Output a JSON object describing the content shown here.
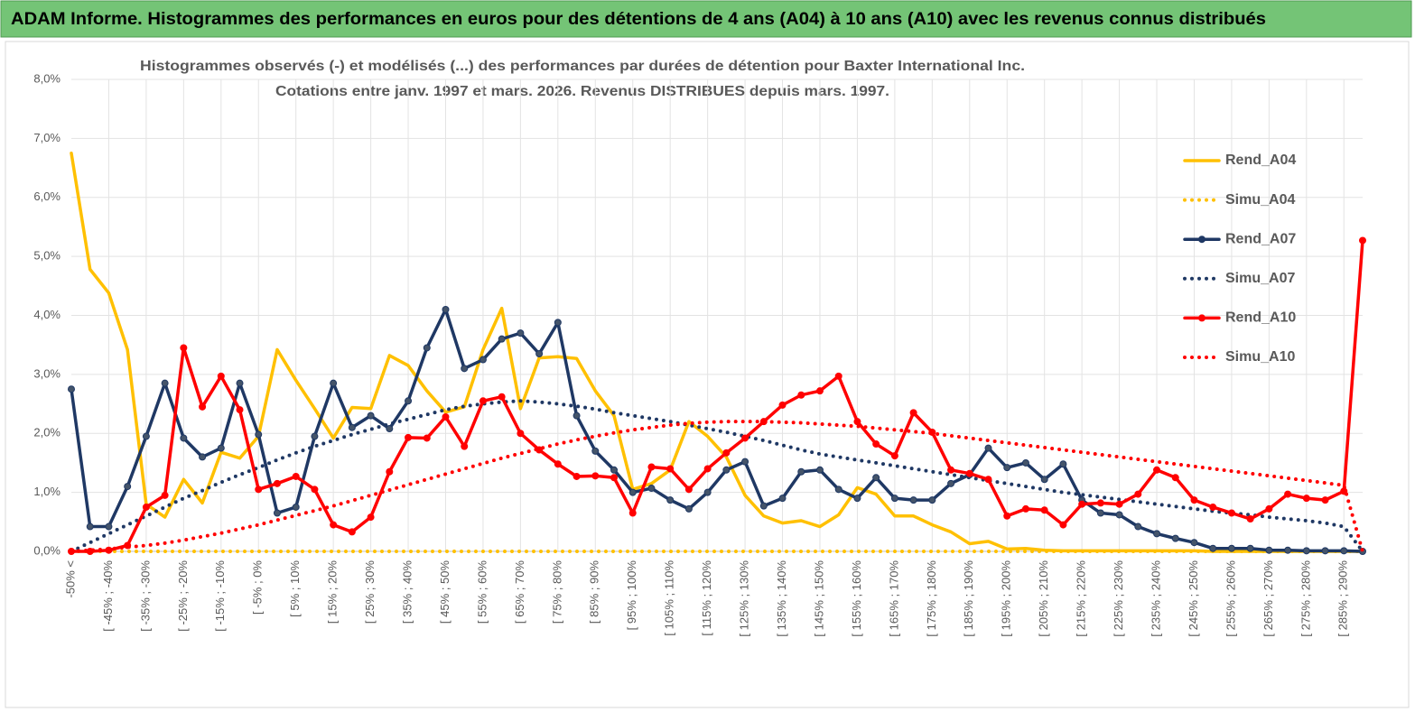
{
  "header": {
    "title": "ADAM Informe. Histogrammes des performances en euros pour des détentions de 4 ans (A04) à 10 ans (A10) avec les revenus connus distribués"
  },
  "chart_data": {
    "type": "line",
    "title": "Histogrammes observés (-) et modélisés (...) des performances par durées de détention pour Baxter International Inc.",
    "subtitle": "Cotations entre janv. 1997 et mars. 2026. Revenus DISTRIBUES depuis mars. 1997.",
    "categories": [
      "-50% <",
      null,
      "[ -45% ; -40%",
      null,
      "[ -35% ; -30%",
      null,
      "[ -25% ; -20%",
      null,
      "[ -15% ; -10%",
      null,
      "[ -5% ; 0%",
      null,
      "[ 5% ; 10%",
      null,
      "[ 15% ; 20%",
      null,
      "[ 25% ; 30%",
      null,
      "[ 35% ; 40%",
      null,
      "[ 45% ; 50%",
      null,
      "[ 55% ; 60%",
      null,
      "[ 65% ; 70%",
      null,
      "[ 75% ; 80%",
      null,
      "[ 85% ; 90%",
      null,
      "[ 95% ; 100%",
      null,
      "[ 105% ; 110%",
      null,
      "[ 115% ; 120%",
      null,
      "[ 125% ; 130%",
      null,
      "[ 135% ; 140%",
      null,
      "[ 145% ; 150%",
      null,
      "[ 155% ; 160%",
      null,
      "[ 165% ; 170%",
      null,
      "[ 175% ; 180%",
      null,
      "[ 185% ; 190%",
      null,
      "[ 195% ; 200%",
      null,
      "[ 205% ; 210%",
      null,
      "[ 215% ; 220%",
      null,
      "[ 225% ; 230%",
      null,
      "[ 235% ; 240%",
      null,
      "[ 245% ; 250%",
      null,
      "[ 255% ; 260%",
      null,
      "[ 265% ; 270%",
      null,
      "[ 275% ; 280%",
      null,
      "[ 285% ; 290%",
      null
    ],
    "ylim": [
      0,
      8
    ],
    "yticks": [
      {
        "value": 0,
        "label": "0,0%"
      },
      {
        "value": 1,
        "label": "1,0%"
      },
      {
        "value": 2,
        "label": "2,0%"
      },
      {
        "value": 3,
        "label": "3,0%"
      },
      {
        "value": 4,
        "label": "4,0%"
      },
      {
        "value": 5,
        "label": "5,0%"
      },
      {
        "value": 6,
        "label": "6,0%"
      },
      {
        "value": 7,
        "label": "7,0%"
      },
      {
        "value": 8,
        "label": "8,0%"
      }
    ],
    "grid": true,
    "legend": "right",
    "series": [
      {
        "name": "Rend_A04",
        "color": "#ffc000",
        "style": "solid",
        "marker": false,
        "values": [
          6.75,
          4.78,
          4.38,
          3.42,
          0.8,
          0.58,
          1.22,
          0.82,
          1.68,
          1.58,
          1.95,
          3.42,
          2.9,
          2.42,
          1.92,
          2.44,
          2.42,
          3.32,
          3.15,
          2.72,
          2.36,
          2.45,
          3.42,
          4.12,
          2.42,
          3.28,
          3.3,
          3.27,
          2.72,
          2.3,
          1.05,
          1.15,
          1.38,
          2.2,
          1.95,
          1.6,
          0.95,
          0.6,
          0.48,
          0.52,
          0.42,
          0.62,
          1.08,
          0.97,
          0.6,
          0.6,
          0.45,
          0.33,
          0.13,
          0.17,
          0.04,
          0.05,
          0.02,
          0.01,
          0.01,
          0.01,
          0.01,
          0.01,
          0.01,
          0.01,
          0.01,
          0,
          0,
          0,
          0,
          0,
          0,
          0,
          0,
          0
        ]
      },
      {
        "name": "Simu_A04",
        "color": "#ffc000",
        "style": "dotted",
        "marker": false,
        "values": [
          0,
          0,
          0,
          0,
          0,
          0,
          0,
          0,
          0,
          0,
          0,
          0,
          0,
          0,
          0,
          0,
          0,
          0,
          0,
          0,
          0,
          0,
          0,
          0,
          0,
          0,
          0,
          0,
          0,
          0,
          0,
          0,
          0,
          0,
          0,
          0,
          0,
          0,
          0,
          0,
          0,
          0,
          0,
          0,
          0,
          0,
          0,
          0,
          0,
          0,
          0,
          0,
          0,
          0,
          0,
          0,
          0,
          0,
          0,
          0,
          0,
          0,
          0,
          0,
          0,
          0,
          0,
          0,
          0,
          0
        ]
      },
      {
        "name": "Rend_A07",
        "color": "#1f3864",
        "style": "solid",
        "marker": true,
        "values": [
          2.75,
          0.42,
          0.42,
          1.1,
          1.95,
          2.85,
          1.92,
          1.6,
          1.75,
          2.85,
          1.98,
          0.65,
          0.75,
          1.95,
          2.85,
          2.1,
          2.3,
          2.08,
          2.55,
          3.45,
          4.1,
          3.1,
          3.25,
          3.6,
          3.7,
          3.35,
          3.88,
          2.3,
          1.7,
          1.38,
          1.0,
          1.07,
          0.87,
          0.72,
          1.0,
          1.38,
          1.52,
          0.77,
          0.9,
          1.35,
          1.38,
          1.05,
          0.9,
          1.25,
          0.9,
          0.87,
          0.87,
          1.15,
          1.3,
          1.75,
          1.42,
          1.5,
          1.22,
          1.48,
          0.87,
          0.65,
          0.62,
          0.42,
          0.3,
          0.22,
          0.15,
          0.05,
          0.05,
          0.05,
          0.02,
          0.02,
          0.01,
          0.01,
          0.01,
          0
        ]
      },
      {
        "name": "Simu_A07",
        "color": "#1f3864",
        "style": "dotted",
        "marker": false,
        "values": [
          0,
          0.15,
          0.3,
          0.45,
          0.6,
          0.75,
          0.9,
          1.03,
          1.17,
          1.3,
          1.42,
          1.55,
          1.67,
          1.78,
          1.88,
          1.98,
          2.07,
          2.16,
          2.24,
          2.32,
          2.4,
          2.46,
          2.5,
          2.53,
          2.55,
          2.53,
          2.5,
          2.46,
          2.41,
          2.35,
          2.3,
          2.25,
          2.2,
          2.14,
          2.08,
          2.02,
          1.95,
          1.88,
          1.8,
          1.72,
          1.65,
          1.6,
          1.55,
          1.5,
          1.45,
          1.4,
          1.35,
          1.3,
          1.25,
          1.2,
          1.15,
          1.1,
          1.05,
          1.0,
          0.96,
          0.92,
          0.88,
          0.84,
          0.8,
          0.76,
          0.72,
          0.68,
          0.65,
          0.62,
          0.58,
          0.55,
          0.52,
          0.48,
          0.42,
          0
        ]
      },
      {
        "name": "Rend_A10",
        "color": "#ff0000",
        "style": "solid",
        "marker": true,
        "values": [
          0,
          0,
          0.02,
          0.1,
          0.75,
          0.95,
          3.45,
          2.45,
          2.97,
          2.4,
          1.05,
          1.15,
          1.27,
          1.05,
          0.45,
          0.33,
          0.58,
          1.35,
          1.93,
          1.92,
          2.28,
          1.78,
          2.55,
          2.62,
          2.0,
          1.72,
          1.48,
          1.27,
          1.28,
          1.25,
          0.65,
          1.43,
          1.4,
          1.05,
          1.4,
          1.67,
          1.92,
          2.2,
          2.48,
          2.65,
          2.72,
          2.97,
          2.2,
          1.82,
          1.62,
          2.35,
          2.02,
          1.38,
          1.32,
          1.22,
          0.6,
          0.72,
          0.7,
          0.45,
          0.8,
          0.82,
          0.8,
          0.97,
          1.38,
          1.25,
          0.87,
          0.75,
          0.65,
          0.55,
          0.72,
          0.97,
          0.9,
          0.87,
          1.02,
          5.27
        ]
      },
      {
        "name": "Simu_A10",
        "color": "#ff0000",
        "style": "dotted",
        "marker": false,
        "values": [
          0,
          0.02,
          0.04,
          0.07,
          0.1,
          0.14,
          0.19,
          0.25,
          0.31,
          0.38,
          0.45,
          0.53,
          0.61,
          0.69,
          0.77,
          0.86,
          0.95,
          1.04,
          1.13,
          1.22,
          1.31,
          1.4,
          1.49,
          1.58,
          1.66,
          1.74,
          1.82,
          1.89,
          1.95,
          2.01,
          2.06,
          2.1,
          2.14,
          2.17,
          2.19,
          2.2,
          2.2,
          2.2,
          2.19,
          2.18,
          2.16,
          2.14,
          2.12,
          2.09,
          2.06,
          2.03,
          2.0,
          1.96,
          1.92,
          1.88,
          1.84,
          1.8,
          1.76,
          1.72,
          1.68,
          1.64,
          1.6,
          1.56,
          1.52,
          1.48,
          1.44,
          1.4,
          1.36,
          1.32,
          1.28,
          1.24,
          1.2,
          1.16,
          1.12,
          0
        ]
      }
    ]
  }
}
